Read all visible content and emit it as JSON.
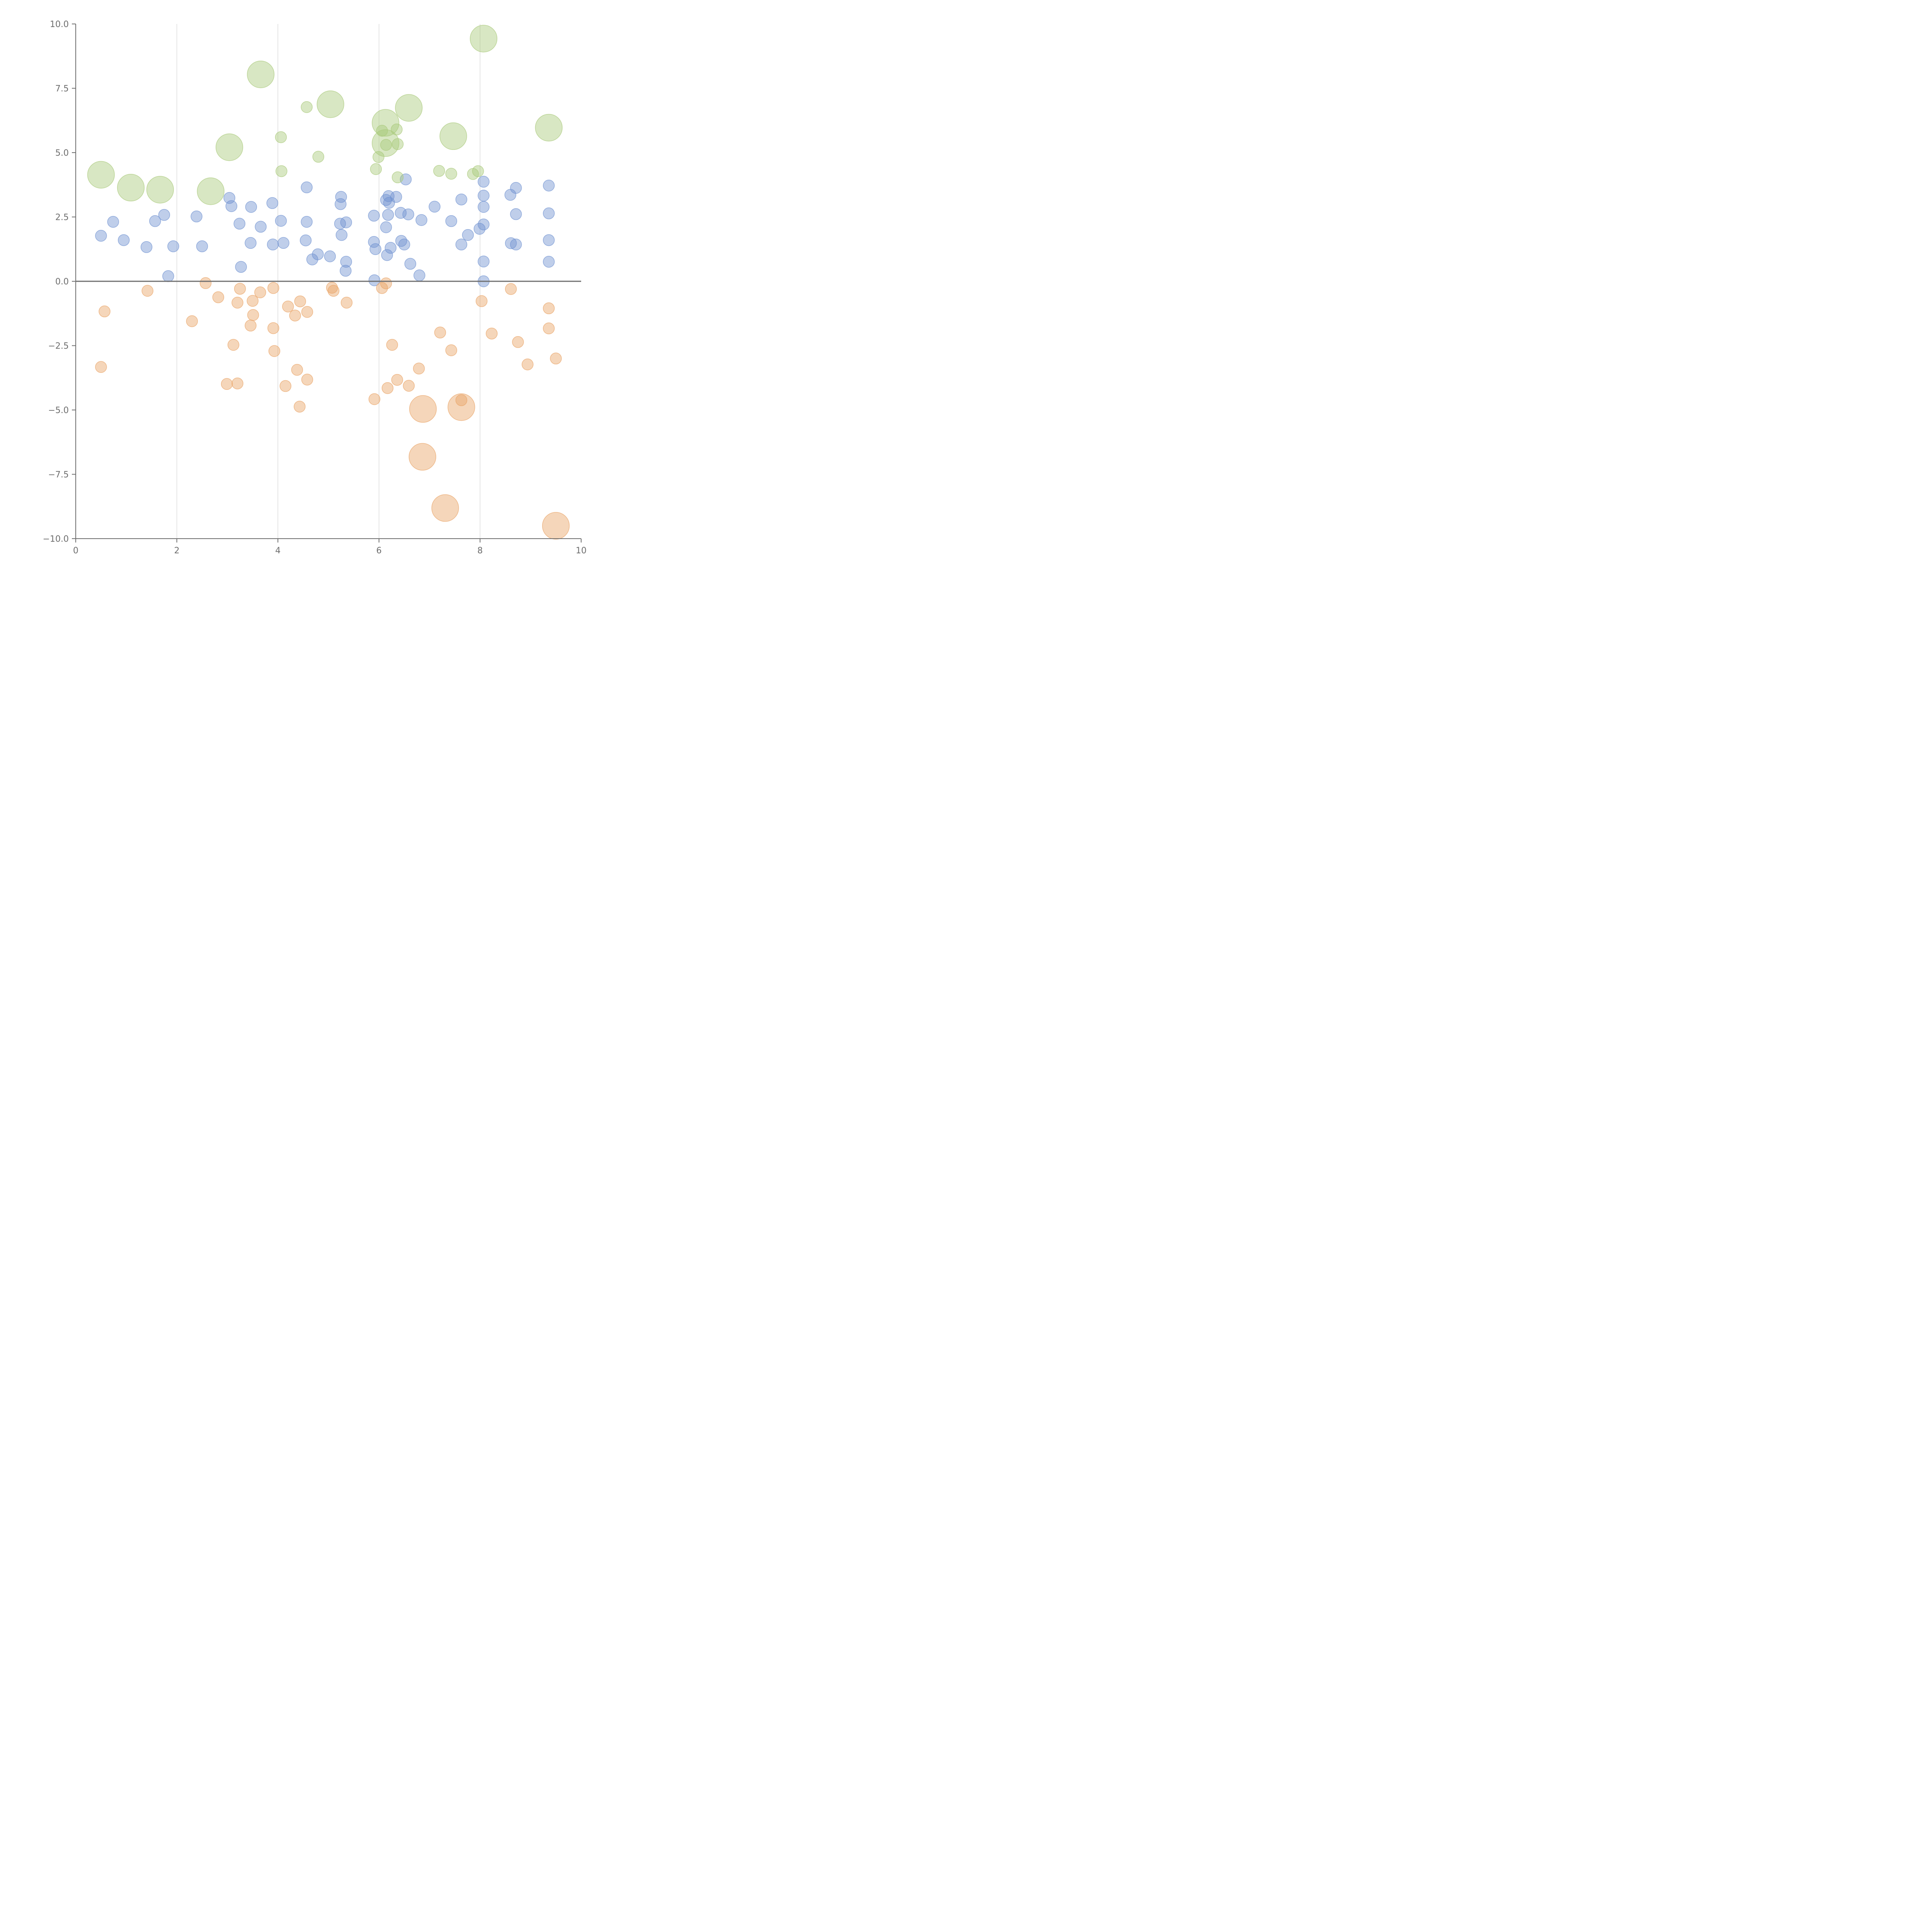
{
  "chart_data": {
    "type": "scatter",
    "title": "",
    "xlabel": "",
    "ylabel": "",
    "xlim": [
      0,
      10
    ],
    "ylim": [
      -10,
      10
    ],
    "x_ticks": [
      0,
      2,
      4,
      6,
      8,
      10
    ],
    "x_tick_labels": [
      "0",
      "2",
      "4",
      "6",
      "8",
      "10"
    ],
    "y_ticks": [
      -10,
      -7.5,
      -5,
      -2.5,
      0,
      2.5,
      5,
      7.5,
      10
    ],
    "y_tick_labels": [
      "−10.0",
      "−7.5",
      "−5.0",
      "−2.5",
      "0.0",
      "2.5",
      "5.0",
      "7.5",
      "10.0"
    ],
    "grid": "vertical lines at x ticks",
    "reference_line": {
      "y": 0
    },
    "colors": {
      "blue": "#7093d1",
      "green": "#a9c97a",
      "orange": "#e9a467",
      "axis": "#6e6e6e"
    },
    "series": [
      {
        "color_key": "blue",
        "points": [
          [
            0.5,
            1.77,
            1
          ],
          [
            0.74,
            2.31,
            1
          ],
          [
            0.95,
            1.6,
            1
          ],
          [
            1.4,
            1.33,
            1
          ],
          [
            1.57,
            2.34,
            1
          ],
          [
            1.75,
            2.58,
            1
          ],
          [
            1.83,
            0.2,
            1
          ],
          [
            1.93,
            1.36,
            1
          ],
          [
            2.39,
            2.52,
            1
          ],
          [
            2.5,
            1.36,
            1
          ],
          [
            3.04,
            3.24,
            1
          ],
          [
            3.08,
            2.92,
            1
          ],
          [
            3.24,
            2.24,
            1
          ],
          [
            3.27,
            0.56,
            1
          ],
          [
            3.46,
            1.49,
            1
          ],
          [
            3.47,
            2.89,
            1
          ],
          [
            3.66,
            2.12,
            1
          ],
          [
            3.89,
            3.04,
            1
          ],
          [
            3.9,
            1.43,
            1
          ],
          [
            4.06,
            2.35,
            1
          ],
          [
            4.11,
            1.49,
            1
          ],
          [
            4.55,
            1.59,
            1
          ],
          [
            4.57,
            3.65,
            1
          ],
          [
            4.57,
            2.31,
            1
          ],
          [
            4.68,
            0.85,
            1
          ],
          [
            4.79,
            1.05,
            1
          ],
          [
            5.03,
            0.97,
            1
          ],
          [
            5.25,
            3.28,
            1
          ],
          [
            5.24,
            3.0,
            1
          ],
          [
            5.23,
            2.24,
            1
          ],
          [
            5.26,
            1.8,
            1
          ],
          [
            5.35,
            2.29,
            1
          ],
          [
            5.34,
            0.41,
            1
          ],
          [
            5.35,
            0.76,
            1
          ],
          [
            5.9,
            2.55,
            1
          ],
          [
            5.9,
            1.53,
            1
          ],
          [
            5.93,
            1.25,
            1
          ],
          [
            5.91,
            0.04,
            1
          ],
          [
            6.14,
            3.16,
            1
          ],
          [
            6.19,
            3.31,
            1
          ],
          [
            6.2,
            3.05,
            1
          ],
          [
            6.18,
            2.58,
            1
          ],
          [
            6.14,
            2.1,
            1
          ],
          [
            6.23,
            1.3,
            1
          ],
          [
            6.16,
            1.02,
            1
          ],
          [
            6.34,
            3.28,
            1
          ],
          [
            6.43,
            2.66,
            1
          ],
          [
            6.44,
            1.57,
            1
          ],
          [
            6.5,
            1.43,
            1
          ],
          [
            6.53,
            3.96,
            1
          ],
          [
            6.58,
            2.6,
            1
          ],
          [
            6.62,
            0.68,
            1
          ],
          [
            6.8,
            0.23,
            1
          ],
          [
            6.84,
            2.38,
            1
          ],
          [
            7.1,
            2.9,
            1
          ],
          [
            7.43,
            2.34,
            1
          ],
          [
            7.63,
            3.18,
            1
          ],
          [
            7.63,
            1.43,
            1
          ],
          [
            7.76,
            1.8,
            1
          ],
          [
            7.99,
            2.04,
            1
          ],
          [
            8.07,
            3.87,
            1
          ],
          [
            8.07,
            3.33,
            1
          ],
          [
            8.07,
            2.89,
            1
          ],
          [
            8.07,
            2.21,
            1
          ],
          [
            8.07,
            0.77,
            1
          ],
          [
            8.07,
            0.0,
            1
          ],
          [
            8.6,
            3.36,
            1
          ],
          [
            8.61,
            1.48,
            1
          ],
          [
            8.71,
            3.63,
            1
          ],
          [
            8.71,
            2.61,
            1
          ],
          [
            8.71,
            1.43,
            1
          ],
          [
            9.36,
            3.72,
            1
          ],
          [
            9.36,
            2.64,
            1
          ],
          [
            9.36,
            1.6,
            1
          ],
          [
            9.36,
            0.76,
            1
          ]
        ]
      },
      {
        "color_key": "green",
        "points": [
          [
            0.5,
            4.14,
            2.4
          ],
          [
            1.09,
            3.64,
            2.4
          ],
          [
            1.67,
            3.56,
            2.4
          ],
          [
            2.67,
            3.5,
            2.4
          ],
          [
            3.04,
            5.21,
            2.4
          ],
          [
            3.66,
            8.04,
            2.4
          ],
          [
            4.06,
            5.6,
            1
          ],
          [
            4.07,
            4.28,
            1
          ],
          [
            4.57,
            6.77,
            1
          ],
          [
            4.8,
            4.84,
            1
          ],
          [
            5.04,
            6.88,
            2.4
          ],
          [
            5.94,
            4.36,
            1
          ],
          [
            5.99,
            4.83,
            1
          ],
          [
            6.06,
            5.85,
            1
          ],
          [
            6.13,
            6.16,
            2.4
          ],
          [
            6.13,
            5.37,
            2.4
          ],
          [
            6.14,
            5.3,
            1
          ],
          [
            6.35,
            5.9,
            1
          ],
          [
            6.37,
            5.33,
            1
          ],
          [
            6.37,
            4.04,
            1
          ],
          [
            6.59,
            6.74,
            2.4
          ],
          [
            7.19,
            4.29,
            1
          ],
          [
            7.47,
            5.64,
            2.4
          ],
          [
            7.43,
            4.18,
            1
          ],
          [
            7.86,
            4.17,
            1
          ],
          [
            7.96,
            4.28,
            1
          ],
          [
            8.07,
            9.43,
            2.4
          ],
          [
            9.36,
            5.97,
            2.4
          ]
        ]
      },
      {
        "color_key": "orange",
        "points": [
          [
            0.5,
            -3.33,
            1
          ],
          [
            0.57,
            -1.17,
            1
          ],
          [
            1.42,
            -0.37,
            1
          ],
          [
            2.3,
            -1.55,
            1
          ],
          [
            2.57,
            -0.07,
            1
          ],
          [
            2.82,
            -0.62,
            1
          ],
          [
            2.99,
            -3.99,
            1
          ],
          [
            3.12,
            -2.47,
            1
          ],
          [
            3.2,
            -0.83,
            1
          ],
          [
            3.2,
            -3.97,
            1
          ],
          [
            3.25,
            -0.29,
            1
          ],
          [
            3.46,
            -1.72,
            1
          ],
          [
            3.5,
            -0.76,
            1
          ],
          [
            3.51,
            -1.31,
            1
          ],
          [
            3.65,
            -0.43,
            1
          ],
          [
            3.91,
            -0.26,
            1
          ],
          [
            3.91,
            -1.82,
            1
          ],
          [
            3.93,
            -2.71,
            1
          ],
          [
            4.15,
            -4.07,
            1
          ],
          [
            4.2,
            -0.98,
            1
          ],
          [
            4.34,
            -1.33,
            1
          ],
          [
            4.38,
            -3.44,
            1
          ],
          [
            4.44,
            -0.78,
            1
          ],
          [
            4.43,
            -4.87,
            1
          ],
          [
            4.58,
            -1.19,
            1
          ],
          [
            4.58,
            -3.82,
            1
          ],
          [
            5.07,
            -0.25,
            1
          ],
          [
            5.1,
            -0.37,
            1
          ],
          [
            5.36,
            -0.83,
            1
          ],
          [
            5.91,
            -4.58,
            1
          ],
          [
            6.06,
            -0.26,
            1
          ],
          [
            6.14,
            -0.08,
            1
          ],
          [
            6.17,
            -4.15,
            1
          ],
          [
            6.26,
            -2.47,
            1
          ],
          [
            6.36,
            -3.83,
            1
          ],
          [
            6.59,
            -4.06,
            1
          ],
          [
            6.79,
            -3.39,
            1
          ],
          [
            6.87,
            -4.96,
            2.4
          ],
          [
            6.86,
            -6.82,
            2.4
          ],
          [
            7.21,
            -1.99,
            1
          ],
          [
            7.31,
            -8.81,
            2.4
          ],
          [
            7.43,
            -2.68,
            1
          ],
          [
            7.63,
            -4.62,
            1
          ],
          [
            7.63,
            -4.89,
            2.4
          ],
          [
            8.03,
            -0.77,
            1
          ],
          [
            8.23,
            -2.03,
            1
          ],
          [
            8.61,
            -0.3,
            1
          ],
          [
            8.75,
            -2.36,
            1
          ],
          [
            8.94,
            -3.23,
            1
          ],
          [
            9.36,
            -1.05,
            1
          ],
          [
            9.36,
            -1.83,
            1
          ],
          [
            9.5,
            -3.0,
            1
          ],
          [
            9.5,
            -9.5,
            2.4
          ]
        ]
      }
    ]
  }
}
